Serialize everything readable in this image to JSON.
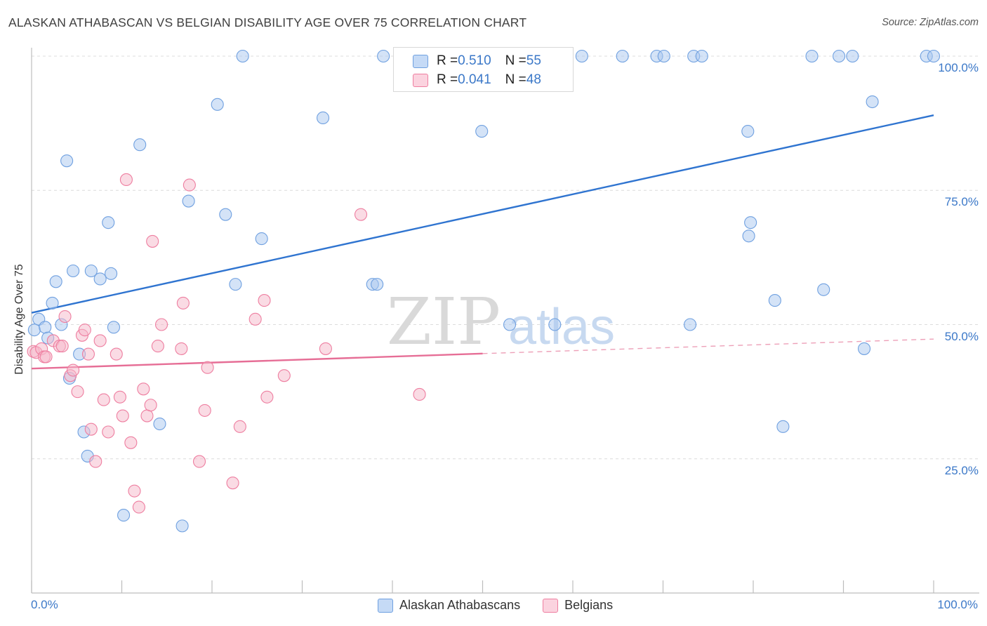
{
  "title": "ALASKAN ATHABASCAN VS BELGIAN DISABILITY AGE OVER 75 CORRELATION CHART",
  "source": "Source: ZipAtlas.com",
  "watermark": {
    "zip": "ZIP",
    "atlas": "atlas"
  },
  "legend": {
    "rows": [
      {
        "r_label": "R = ",
        "r_value": "0.510",
        "n_label": "N = ",
        "n_value": "55",
        "color": "#a9c8f0"
      },
      {
        "r_label": "R = ",
        "r_value": "0.041",
        "n_label": "N = ",
        "n_value": "48",
        "color": "#f6b7c9"
      }
    ],
    "bottom": [
      "Alaskan Athabascans",
      "Belgians"
    ]
  },
  "chart_data": {
    "type": "scatter",
    "title": "ALASKAN ATHABASCAN VS BELGIAN DISABILITY AGE OVER 75 CORRELATION CHART",
    "xlabel": "",
    "ylabel": "Disability Age Over 75",
    "xlim": [
      0,
      100
    ],
    "ylim": [
      0,
      100
    ],
    "x_tick_labels": [
      "0.0%",
      "100.0%"
    ],
    "y_tick_labels": [
      "25.0%",
      "50.0%",
      "75.0%",
      "100.0%"
    ],
    "y_ticks": [
      25,
      50,
      75,
      100
    ],
    "grid": "horizontal dashed",
    "series": [
      {
        "name": "Alaskan Athabascans",
        "color": "#6fa0e0",
        "fill": "#a9c8f0",
        "r": 0.51,
        "n": 55,
        "trend": {
          "x0": 0,
          "y0": 52.2,
          "x1": 100,
          "y1": 89.0
        },
        "points": [
          [
            0.3,
            49
          ],
          [
            0.8,
            51
          ],
          [
            1.5,
            49.5
          ],
          [
            1.8,
            47.5
          ],
          [
            2.3,
            54
          ],
          [
            2.7,
            58
          ],
          [
            3.3,
            50
          ],
          [
            3.9,
            80.5
          ],
          [
            4.2,
            40
          ],
          [
            4.6,
            60
          ],
          [
            5.3,
            44.5
          ],
          [
            5.8,
            30
          ],
          [
            6.2,
            25.5
          ],
          [
            6.6,
            60
          ],
          [
            7.6,
            58.5
          ],
          [
            8.5,
            69
          ],
          [
            8.8,
            59.5
          ],
          [
            9.1,
            49.5
          ],
          [
            10.2,
            14.5
          ],
          [
            12.0,
            83.5
          ],
          [
            14.2,
            31.5
          ],
          [
            16.7,
            12.5
          ],
          [
            17.4,
            73
          ],
          [
            20.6,
            91
          ],
          [
            21.5,
            70.5
          ],
          [
            22.6,
            57.5
          ],
          [
            23.4,
            100
          ],
          [
            25.5,
            66
          ],
          [
            32.3,
            88.5
          ],
          [
            37.8,
            57.5
          ],
          [
            38.3,
            57.5
          ],
          [
            39.0,
            100
          ],
          [
            49.9,
            86
          ],
          [
            53.0,
            50
          ],
          [
            58.0,
            50
          ],
          [
            61.0,
            100
          ],
          [
            65.5,
            100
          ],
          [
            69.3,
            100
          ],
          [
            70.1,
            100
          ],
          [
            73.0,
            50
          ],
          [
            73.4,
            100
          ],
          [
            74.3,
            100
          ],
          [
            79.4,
            86
          ],
          [
            79.5,
            66.5
          ],
          [
            79.7,
            69
          ],
          [
            82.4,
            54.5
          ],
          [
            83.3,
            31
          ],
          [
            86.5,
            100
          ],
          [
            87.8,
            56.5
          ],
          [
            89.5,
            100
          ],
          [
            91.0,
            100
          ],
          [
            92.3,
            45.5
          ],
          [
            93.2,
            91.5
          ],
          [
            99.2,
            100
          ],
          [
            100.0,
            100
          ]
        ]
      },
      {
        "name": "Belgians",
        "color": "#ee7ea0",
        "fill": "#f6b7c9",
        "r": 0.041,
        "n": 48,
        "trend": {
          "x0": 0,
          "y0": 41.8,
          "x1": 50,
          "y1": 44.6,
          "dash_to": 100,
          "dash_y": 47.3
        },
        "points": [
          [
            0.2,
            45
          ],
          [
            0.5,
            44.8
          ],
          [
            1.1,
            45.5
          ],
          [
            1.4,
            44
          ],
          [
            1.6,
            44
          ],
          [
            2.4,
            47
          ],
          [
            3.1,
            46
          ],
          [
            3.4,
            46
          ],
          [
            3.7,
            51.5
          ],
          [
            4.3,
            40.5
          ],
          [
            4.6,
            41.5
          ],
          [
            5.1,
            37.5
          ],
          [
            5.6,
            48
          ],
          [
            5.9,
            49
          ],
          [
            6.3,
            44.5
          ],
          [
            6.6,
            30.5
          ],
          [
            7.1,
            24.5
          ],
          [
            7.6,
            47
          ],
          [
            8.0,
            36
          ],
          [
            8.5,
            30
          ],
          [
            9.4,
            44.5
          ],
          [
            9.8,
            36.5
          ],
          [
            10.1,
            33
          ],
          [
            10.5,
            77
          ],
          [
            11.0,
            28
          ],
          [
            11.4,
            19
          ],
          [
            11.9,
            16
          ],
          [
            12.4,
            38
          ],
          [
            12.8,
            33
          ],
          [
            13.2,
            35
          ],
          [
            13.4,
            65.5
          ],
          [
            14.0,
            46
          ],
          [
            14.4,
            50
          ],
          [
            16.6,
            45.5
          ],
          [
            16.8,
            54
          ],
          [
            17.5,
            76
          ],
          [
            18.6,
            24.5
          ],
          [
            19.2,
            34
          ],
          [
            19.5,
            42
          ],
          [
            22.3,
            20.5
          ],
          [
            23.1,
            31
          ],
          [
            24.8,
            51
          ],
          [
            25.8,
            54.5
          ],
          [
            26.1,
            36.5
          ],
          [
            28.0,
            40.5
          ],
          [
            32.6,
            45.5
          ],
          [
            36.5,
            70.5
          ],
          [
            43.0,
            37
          ]
        ]
      }
    ]
  }
}
